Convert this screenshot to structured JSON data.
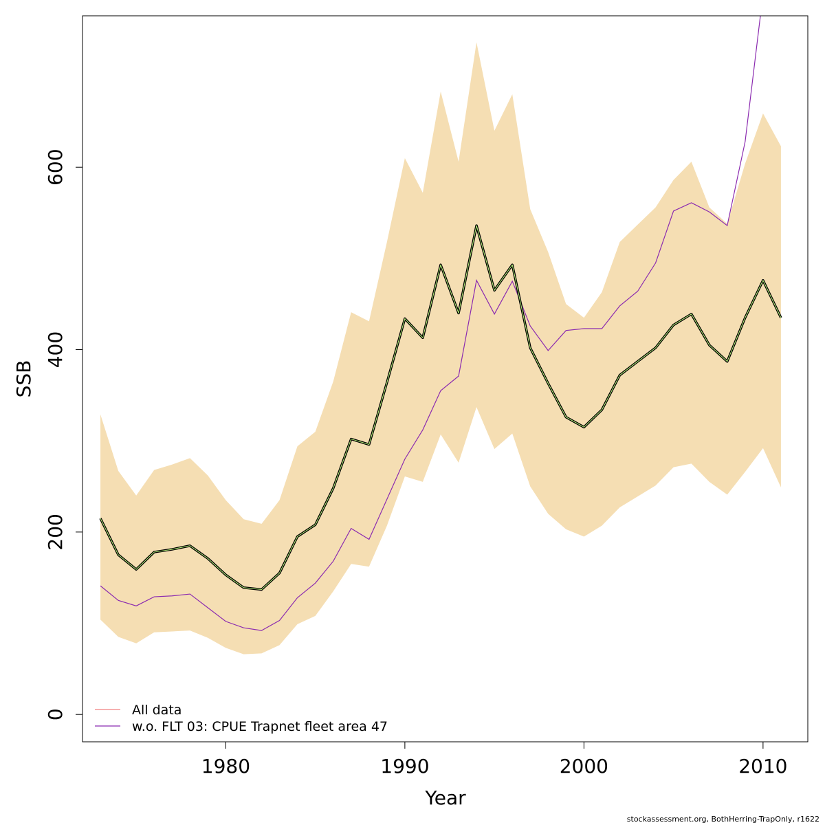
{
  "chart_data": {
    "type": "line",
    "xlabel": "Year",
    "ylabel": "SSB",
    "xlim": [
      1972,
      2012.5
    ],
    "ylim": [
      -30,
      766
    ],
    "x_ticks": [
      1980,
      1990,
      2000,
      2010
    ],
    "y_ticks": [
      0,
      200,
      400,
      600
    ],
    "grid": false,
    "legend_position": "bottom-left",
    "x": [
      1973,
      1974,
      1975,
      1976,
      1977,
      1978,
      1979,
      1980,
      1981,
      1982,
      1983,
      1984,
      1985,
      1986,
      1987,
      1988,
      1989,
      1990,
      1991,
      1992,
      1993,
      1994,
      1995,
      1996,
      1997,
      1998,
      1999,
      2000,
      2001,
      2002,
      2003,
      2004,
      2005,
      2006,
      2007,
      2008,
      2009,
      2010,
      2011
    ],
    "band": {
      "color": "#f5deb3",
      "lower": [
        104,
        85,
        78,
        90,
        91,
        92,
        84,
        73,
        66,
        67,
        76,
        99,
        108,
        135,
        165,
        162,
        207,
        261,
        255,
        307,
        276,
        337,
        291,
        308,
        250,
        220,
        203,
        195,
        207,
        227,
        239,
        251,
        271,
        275,
        255,
        241,
        266,
        292,
        249
      ],
      "upper": [
        329,
        267,
        240,
        268,
        274,
        281,
        262,
        235,
        214,
        209,
        235,
        294,
        310,
        365,
        441,
        431,
        518,
        610,
        572,
        683,
        606,
        737,
        640,
        680,
        554,
        507,
        450,
        435,
        463,
        518,
        537,
        556,
        586,
        606,
        556,
        538,
        604,
        659,
        623
      ]
    },
    "series": [
      {
        "name": "All data",
        "legend_color": "#f08080",
        "color": "#000000",
        "highlight": "#b7f37a",
        "values": [
          215,
          175,
          159,
          178,
          181,
          185,
          171,
          153,
          139,
          137,
          155,
          195,
          208,
          248,
          302,
          296,
          364,
          434,
          413,
          493,
          440,
          536,
          465,
          493,
          402,
          363,
          326,
          315,
          334,
          372,
          387,
          402,
          427,
          439,
          405,
          387,
          435,
          476,
          435
        ]
      },
      {
        "name": "w.o. FLT 03: CPUE Trapnet fleet area 47",
        "legend_color": "#8b2bb0",
        "color": "#8b2bb0",
        "values": [
          141,
          125,
          119,
          129,
          130,
          132,
          117,
          102,
          95,
          92,
          103,
          128,
          144,
          168,
          204,
          192,
          236,
          280,
          312,
          355,
          371,
          476,
          439,
          475,
          426,
          399,
          421,
          423,
          423,
          448,
          464,
          495,
          552,
          561,
          551,
          536,
          628,
          790,
          null
        ]
      }
    ]
  },
  "credit": "stockassessment.org, BothHerring-TrapOnly, r1622"
}
